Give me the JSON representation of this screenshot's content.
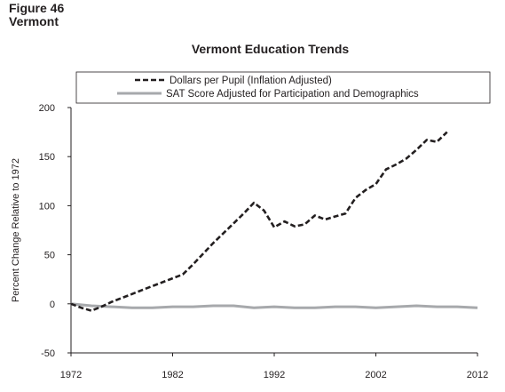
{
  "figure": {
    "number": "Figure 46",
    "state": "Vermont"
  },
  "chart_data": {
    "type": "line",
    "title": "Vermont Education Trends",
    "ylabel": "Percent Change Relative to 1972",
    "xlabel": "",
    "xlim": [
      1972,
      2012
    ],
    "ylim": [
      -50,
      200
    ],
    "x_ticks": [
      "1972",
      "1982",
      "1992",
      "2002",
      "2012"
    ],
    "y_ticks": [
      "200",
      "150",
      "100",
      "50",
      "0",
      "-50"
    ],
    "grid": false,
    "legend_position": "top",
    "series": [
      {
        "name": "Dollars per Pupil (Inflation Adjusted)",
        "style": "dashed",
        "color": "#231f20",
        "x": [
          1972,
          1973,
          1974,
          1975,
          1976,
          1977,
          1978,
          1979,
          1980,
          1981,
          1982,
          1983,
          1984,
          1985,
          1986,
          1987,
          1988,
          1989,
          1990,
          1991,
          1992,
          1993,
          1994,
          1995,
          1996,
          1997,
          1998,
          1999,
          2000,
          2001,
          2002,
          2003,
          2004,
          2005,
          2006,
          2007,
          2008,
          2009
        ],
        "values": [
          0,
          -4,
          -7,
          -3,
          2,
          6,
          10,
          14,
          18,
          22,
          26,
          30,
          40,
          51,
          62,
          72,
          82,
          92,
          103,
          95,
          78,
          84,
          79,
          81,
          90,
          86,
          89,
          92,
          108,
          116,
          122,
          137,
          142,
          148,
          157,
          167,
          165,
          175
        ]
      },
      {
        "name": "SAT Score Adjusted for Participation and Demographics",
        "style": "solid",
        "color": "#a7a9ac",
        "x": [
          1972,
          1974,
          1976,
          1978,
          1980,
          1982,
          1984,
          1986,
          1988,
          1990,
          1992,
          1994,
          1996,
          1998,
          2000,
          2002,
          2004,
          2006,
          2008,
          2010,
          2012
        ],
        "values": [
          0,
          -2,
          -3,
          -4,
          -4,
          -3,
          -3,
          -2,
          -2,
          -4,
          -3,
          -4,
          -4,
          -3,
          -3,
          -4,
          -3,
          -2,
          -3,
          -3,
          -4
        ]
      }
    ]
  }
}
